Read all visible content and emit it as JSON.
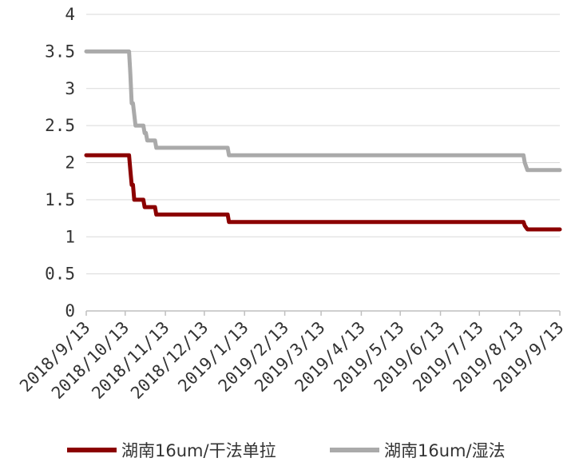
{
  "chart_data": {
    "type": "line",
    "title": "",
    "xlabel": "",
    "ylabel": "",
    "ylim": [
      0,
      4
    ],
    "yticks": [
      "0",
      "0.5",
      "1",
      "1.5",
      "2",
      "2.5",
      "3",
      "3.5",
      "4"
    ],
    "xticks": [
      "2018/9/13",
      "2018/10/13",
      "2018/11/13",
      "2018/12/13",
      "2019/1/13",
      "2019/2/13",
      "2019/3/13",
      "2019/4/13",
      "2019/5/13",
      "2019/6/13",
      "2019/7/13",
      "2019/8/13",
      "2019/9/13"
    ],
    "grid": "horizontal",
    "legend_position": "bottom",
    "series": [
      {
        "name": "湖南16um/干法单拉",
        "color": "#8B0000",
        "points": [
          [
            "2018/9/13",
            2.1
          ],
          [
            "2018/10/13",
            2.1
          ],
          [
            "2018/10/16",
            2.1
          ],
          [
            "2018/10/17",
            1.9
          ],
          [
            "2018/10/18",
            1.7
          ],
          [
            "2018/10/19",
            1.7
          ],
          [
            "2018/10/20",
            1.5
          ],
          [
            "2018/10/27",
            1.5
          ],
          [
            "2018/10/28",
            1.4
          ],
          [
            "2018/11/3",
            1.4
          ],
          [
            "2018/11/5",
            1.4
          ],
          [
            "2018/11/6",
            1.3
          ],
          [
            "2018/12/31",
            1.3
          ],
          [
            "2019/1/1",
            1.2
          ],
          [
            "2019/8/16",
            1.2
          ],
          [
            "2019/8/17",
            1.15
          ],
          [
            "2019/8/19",
            1.1
          ],
          [
            "2019/9/13",
            1.1
          ]
        ]
      },
      {
        "name": "湖南16um/湿法",
        "color": "#AAAAAA",
        "points": [
          [
            "2018/9/13",
            3.5
          ],
          [
            "2018/10/13",
            3.5
          ],
          [
            "2018/10/16",
            3.5
          ],
          [
            "2018/10/17",
            3.2
          ],
          [
            "2018/10/18",
            2.8
          ],
          [
            "2018/10/19",
            2.8
          ],
          [
            "2018/10/21",
            2.5
          ],
          [
            "2018/10/27",
            2.5
          ],
          [
            "2018/10/28",
            2.4
          ],
          [
            "2018/10/29",
            2.4
          ],
          [
            "2018/10/30",
            2.3
          ],
          [
            "2018/11/5",
            2.3
          ],
          [
            "2018/11/6",
            2.2
          ],
          [
            "2018/12/31",
            2.2
          ],
          [
            "2019/1/1",
            2.1
          ],
          [
            "2019/8/16",
            2.1
          ],
          [
            "2019/8/17",
            2.0
          ],
          [
            "2019/8/19",
            1.9
          ],
          [
            "2019/9/13",
            1.9
          ]
        ]
      }
    ]
  }
}
